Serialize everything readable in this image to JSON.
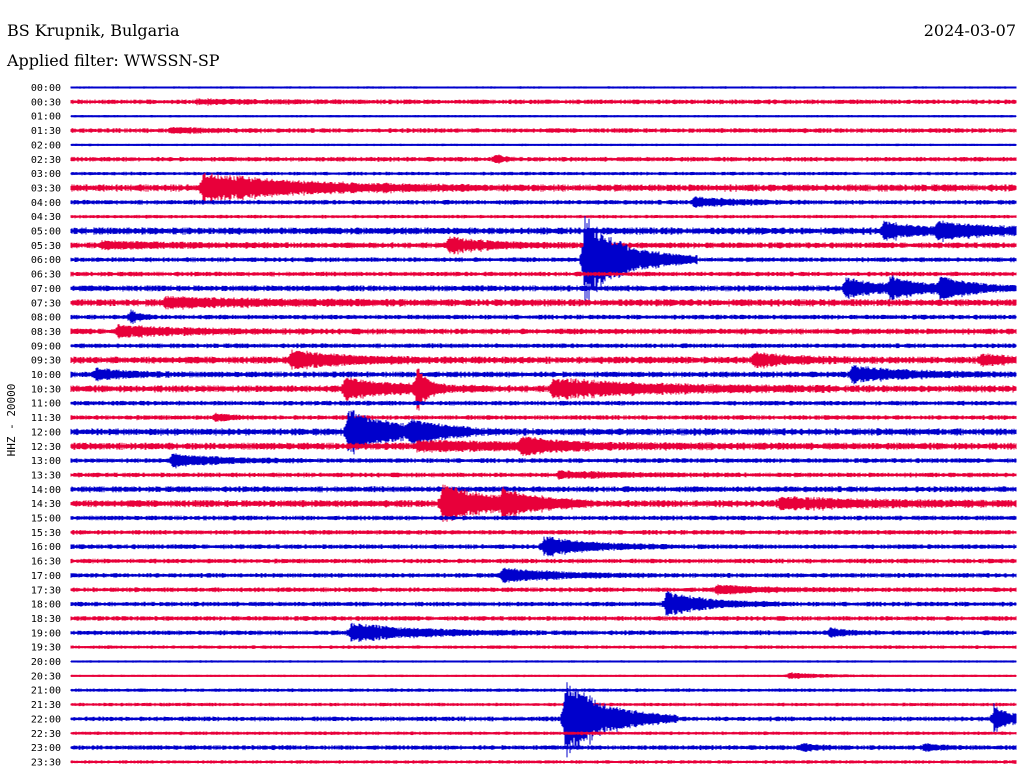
{
  "station": "BS Krupnik, Bulgaria",
  "date": "2024-03-07",
  "filter_label": "Applied filter: WWSSN-SP",
  "channel_label": "HHZ - 20000",
  "colors": {
    "even": "#0000cc",
    "odd": "#e8003a",
    "background": "#ffffff",
    "text": "#000000"
  },
  "chart_data": {
    "type": "line",
    "title": "BS Krupnik, Bulgaria",
    "subtitle": "Applied filter: WWSSN-SP",
    "ylabel": "HHZ - 20000",
    "xlabel": "",
    "grid": false,
    "legend": "none",
    "row_labels": [
      "00:00",
      "00:30",
      "01:00",
      "01:30",
      "02:00",
      "02:30",
      "03:00",
      "03:30",
      "04:00",
      "04:30",
      "05:00",
      "05:30",
      "06:00",
      "06:30",
      "07:00",
      "07:30",
      "08:00",
      "08:30",
      "09:00",
      "09:30",
      "10:00",
      "10:30",
      "11:00",
      "11:30",
      "12:00",
      "12:30",
      "13:00",
      "13:30",
      "14:00",
      "14:30",
      "15:00",
      "15:30",
      "16:00",
      "16:30",
      "17:00",
      "17:30",
      "18:00",
      "18:30",
      "19:00",
      "19:30",
      "20:00",
      "20:30",
      "21:00",
      "21:30",
      "22:00",
      "22:30",
      "23:00",
      "23:30"
    ],
    "x_range_minutes": [
      0,
      30
    ],
    "noise": [
      1,
      2,
      1,
      2,
      1,
      2,
      1.5,
      3,
      2,
      1.5,
      3,
      2.5,
      2,
      2,
      2.5,
      3,
      2,
      2.5,
      2,
      3,
      2.5,
      3,
      2,
      2,
      3,
      3,
      2,
      2,
      2.5,
      3,
      2,
      2,
      2,
      2,
      2,
      2,
      2,
      2,
      2,
      1.5,
      1,
      1,
      1.5,
      1.5,
      2,
      1.5,
      2,
      1.5
    ],
    "events": [
      {
        "row": 1,
        "t": 4.0,
        "amp": 1.5,
        "dur": 2.0
      },
      {
        "row": 3,
        "t": 3.2,
        "amp": 2,
        "dur": 1.0
      },
      {
        "row": 5,
        "t": 13.5,
        "amp": 5,
        "dur": 0.2
      },
      {
        "row": 7,
        "t": 4.2,
        "amp": 13,
        "dur": 3.0
      },
      {
        "row": 8,
        "t": 19.8,
        "amp": 5,
        "dur": 1.2
      },
      {
        "row": 10,
        "t": 25.8,
        "amp": 8,
        "dur": 1.0
      },
      {
        "row": 10,
        "t": 27.5,
        "amp": 7,
        "dur": 2.0
      },
      {
        "row": 11,
        "t": 12.0,
        "amp": 7,
        "dur": 1.3
      },
      {
        "row": 11,
        "t": 1.0,
        "amp": 3,
        "dur": 2.0
      },
      {
        "row": 12,
        "t": 16.3,
        "amp": 45,
        "dur": 1.2
      },
      {
        "row": 14,
        "t": 24.6,
        "amp": 10,
        "dur": 1.0
      },
      {
        "row": 14,
        "t": 26.0,
        "amp": 9,
        "dur": 1.0
      },
      {
        "row": 14,
        "t": 27.6,
        "amp": 10,
        "dur": 1.0
      },
      {
        "row": 15,
        "t": 3.0,
        "amp": 4,
        "dur": 3.0
      },
      {
        "row": 16,
        "t": 1.9,
        "amp": 6,
        "dur": 0.3
      },
      {
        "row": 17,
        "t": 1.5,
        "amp": 5,
        "dur": 2.0
      },
      {
        "row": 19,
        "t": 7.0,
        "amp": 9,
        "dur": 1.5
      },
      {
        "row": 19,
        "t": 21.7,
        "amp": 6,
        "dur": 1.2
      },
      {
        "row": 19,
        "t": 28.9,
        "amp": 5,
        "dur": 0.8
      },
      {
        "row": 20,
        "t": 0.8,
        "amp": 5,
        "dur": 1.0
      },
      {
        "row": 20,
        "t": 24.8,
        "amp": 8,
        "dur": 1.6
      },
      {
        "row": 21,
        "t": 8.7,
        "amp": 10,
        "dur": 1.5
      },
      {
        "row": 21,
        "t": 11.0,
        "amp": 20,
        "dur": 0.3
      },
      {
        "row": 21,
        "t": 15.3,
        "amp": 9,
        "dur": 3.0
      },
      {
        "row": 23,
        "t": 4.6,
        "amp": 3,
        "dur": 0.5
      },
      {
        "row": 24,
        "t": 8.8,
        "amp": 22,
        "dur": 1.3
      },
      {
        "row": 24,
        "t": 10.8,
        "amp": 8,
        "dur": 1.0
      },
      {
        "row": 25,
        "t": 14.3,
        "amp": 8,
        "dur": 1.0
      },
      {
        "row": 25,
        "t": 11.0,
        "amp": 4,
        "dur": 4.0
      },
      {
        "row": 26,
        "t": 3.2,
        "amp": 6,
        "dur": 1.5
      },
      {
        "row": 27,
        "t": 15.5,
        "amp": 3,
        "dur": 2.0
      },
      {
        "row": 29,
        "t": 11.8,
        "amp": 18,
        "dur": 1.5
      },
      {
        "row": 29,
        "t": 13.7,
        "amp": 10,
        "dur": 1.0
      },
      {
        "row": 29,
        "t": 22.5,
        "amp": 5,
        "dur": 3.0
      },
      {
        "row": 32,
        "t": 15.0,
        "amp": 9,
        "dur": 1.5
      },
      {
        "row": 34,
        "t": 13.7,
        "amp": 7,
        "dur": 1.5
      },
      {
        "row": 35,
        "t": 20.5,
        "amp": 4,
        "dur": 1.5
      },
      {
        "row": 36,
        "t": 18.9,
        "amp": 12,
        "dur": 1.2
      },
      {
        "row": 38,
        "t": 8.9,
        "amp": 9,
        "dur": 2.0
      },
      {
        "row": 38,
        "t": 24.1,
        "amp": 4,
        "dur": 0.5
      },
      {
        "row": 41,
        "t": 22.8,
        "amp": 3,
        "dur": 1.0
      },
      {
        "row": 44,
        "t": 15.7,
        "amp": 42,
        "dur": 1.2
      },
      {
        "row": 44,
        "t": 29.3,
        "amp": 14,
        "dur": 0.5
      },
      {
        "row": 46,
        "t": 23.2,
        "amp": 4,
        "dur": 0.5
      },
      {
        "row": 46,
        "t": 27.1,
        "amp": 3,
        "dur": 0.5
      }
    ]
  }
}
